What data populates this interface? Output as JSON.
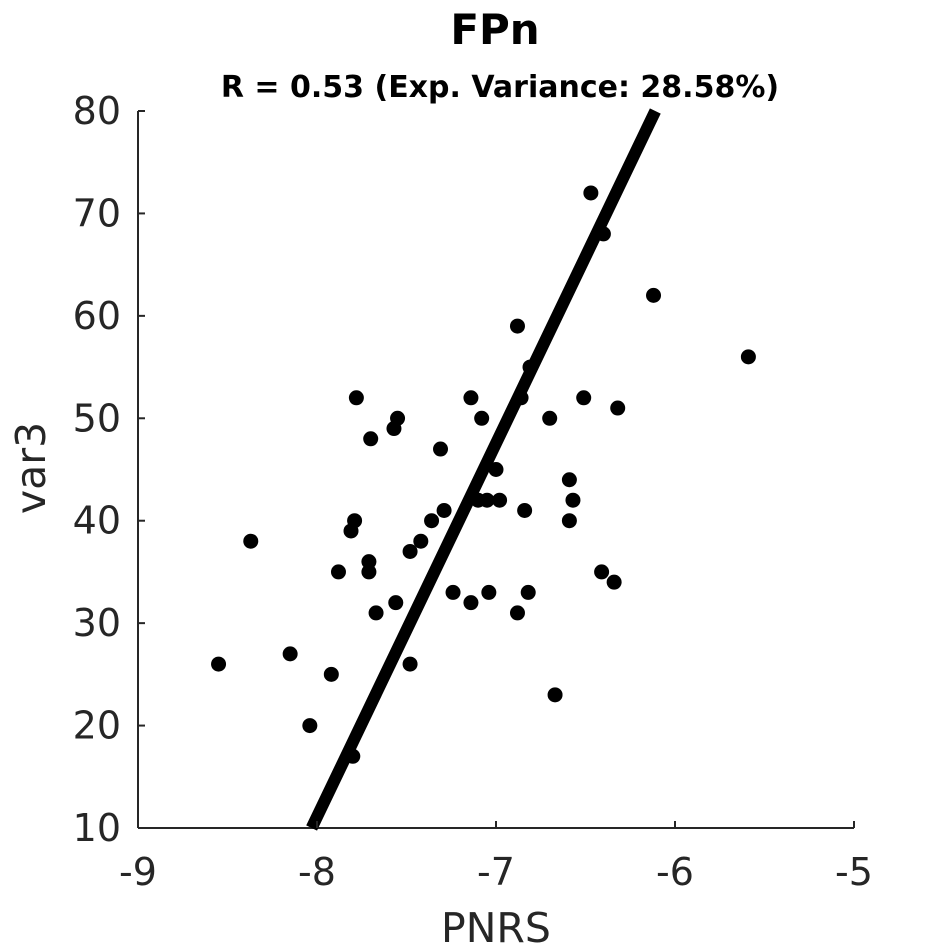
{
  "chart_data": {
    "type": "scatter",
    "title": "FPn",
    "subtitle": "R = 0.53 (Exp. Variance: 28.58%)",
    "xlabel": "PNRS",
    "ylabel": "var3",
    "xlim": [
      -9,
      -5
    ],
    "ylim": [
      10,
      80
    ],
    "xticks": [
      "-9",
      "-8",
      "-7",
      "-6",
      "-5"
    ],
    "yticks": [
      "10",
      "20",
      "30",
      "40",
      "50",
      "60",
      "70",
      "80"
    ],
    "grid": false,
    "points": [
      {
        "x": -8.55,
        "y": 26
      },
      {
        "x": -8.37,
        "y": 38
      },
      {
        "x": -8.15,
        "y": 27
      },
      {
        "x": -8.04,
        "y": 20
      },
      {
        "x": -7.92,
        "y": 25
      },
      {
        "x": -7.88,
        "y": 35
      },
      {
        "x": -7.81,
        "y": 39
      },
      {
        "x": -7.79,
        "y": 40
      },
      {
        "x": -7.78,
        "y": 52
      },
      {
        "x": -7.8,
        "y": 17
      },
      {
        "x": -7.7,
        "y": 48
      },
      {
        "x": -7.71,
        "y": 36
      },
      {
        "x": -7.71,
        "y": 35
      },
      {
        "x": -7.67,
        "y": 31
      },
      {
        "x": -7.57,
        "y": 49
      },
      {
        "x": -7.55,
        "y": 50
      },
      {
        "x": -7.56,
        "y": 32
      },
      {
        "x": -7.48,
        "y": 37
      },
      {
        "x": -7.48,
        "y": 26
      },
      {
        "x": -7.42,
        "y": 38
      },
      {
        "x": -7.36,
        "y": 40
      },
      {
        "x": -7.31,
        "y": 47
      },
      {
        "x": -7.29,
        "y": 41
      },
      {
        "x": -7.24,
        "y": 33
      },
      {
        "x": -7.14,
        "y": 52
      },
      {
        "x": -7.14,
        "y": 32
      },
      {
        "x": -7.1,
        "y": 42
      },
      {
        "x": -7.08,
        "y": 50
      },
      {
        "x": -7.05,
        "y": 42
      },
      {
        "x": -7.04,
        "y": 33
      },
      {
        "x": -7.0,
        "y": 45
      },
      {
        "x": -6.98,
        "y": 42
      },
      {
        "x": -6.88,
        "y": 59
      },
      {
        "x": -6.88,
        "y": 31
      },
      {
        "x": -6.86,
        "y": 52
      },
      {
        "x": -6.84,
        "y": 41
      },
      {
        "x": -6.82,
        "y": 33
      },
      {
        "x": -6.81,
        "y": 55
      },
      {
        "x": -6.7,
        "y": 50
      },
      {
        "x": -6.67,
        "y": 23
      },
      {
        "x": -6.59,
        "y": 44
      },
      {
        "x": -6.59,
        "y": 40
      },
      {
        "x": -6.57,
        "y": 42
      },
      {
        "x": -6.51,
        "y": 52
      },
      {
        "x": -6.47,
        "y": 72
      },
      {
        "x": -6.41,
        "y": 35
      },
      {
        "x": -6.4,
        "y": 68
      },
      {
        "x": -6.34,
        "y": 34
      },
      {
        "x": -6.32,
        "y": 51
      },
      {
        "x": -6.12,
        "y": 62
      },
      {
        "x": -5.59,
        "y": 56
      }
    ],
    "fit_line": {
      "x": [
        -8.03,
        -6.11
      ],
      "y": [
        10,
        80
      ]
    },
    "colors": {
      "points": "#000000",
      "fit_line": "#000000",
      "axes": "#262626"
    }
  }
}
